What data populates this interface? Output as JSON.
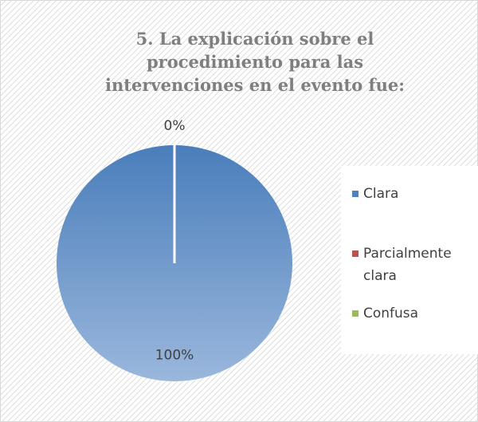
{
  "chart_data": {
    "type": "pie",
    "title": "5. La explicación sobre el procedimiento para las intervenciones en el evento fue:",
    "categories": [
      "Clara",
      "Parcialmente clara",
      "Confusa"
    ],
    "values": [
      100,
      0,
      0
    ],
    "value_labels": [
      "100%",
      "0%",
      null
    ],
    "colors": [
      "#4f81bd",
      "#c0504d",
      "#9bbb59"
    ],
    "legend": "right"
  }
}
